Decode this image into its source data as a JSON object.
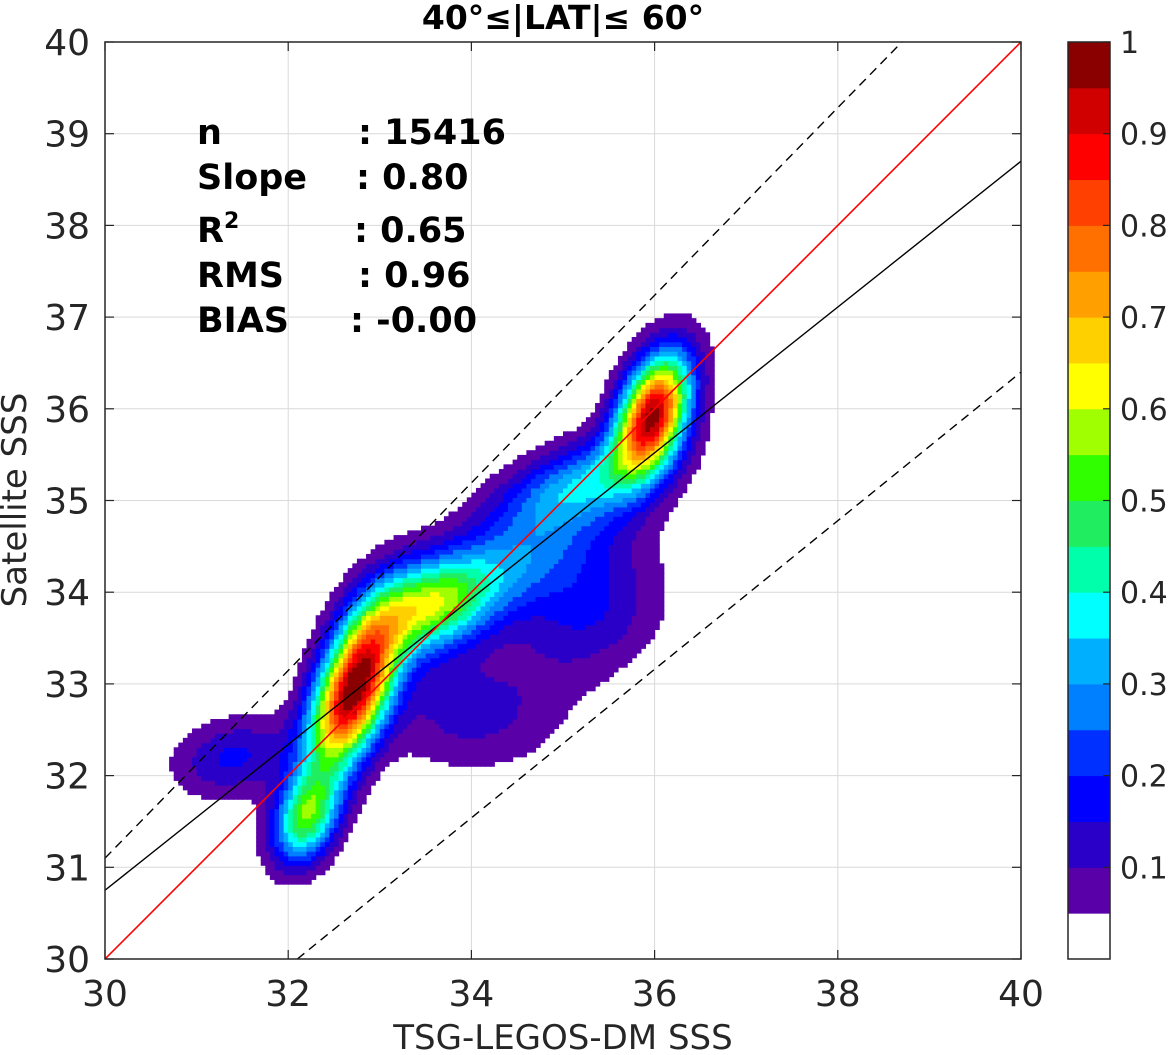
{
  "chart_data": {
    "type": "contour",
    "title": "40°≤|LAT|≤ 60°",
    "xlabel": "TSG-LEGOS-DM SSS",
    "ylabel": "Satellite SSS",
    "xlim": [
      30,
      40
    ],
    "ylim": [
      30,
      40
    ],
    "x_ticks": [
      "30",
      "32",
      "34",
      "36",
      "38",
      "40"
    ],
    "y_ticks": [
      "30",
      "31",
      "32",
      "33",
      "34",
      "35",
      "36",
      "37",
      "38",
      "39",
      "40"
    ],
    "grid": true,
    "stats": [
      {
        "label": "n",
        "value": ": 15416"
      },
      {
        "label": "Slope",
        "value": ": 0.80"
      },
      {
        "label": "R",
        "sup": "2",
        "value": ": 0.65"
      },
      {
        "label": "RMS",
        "value": ": 0.96"
      },
      {
        "label": "BIAS",
        "value": ": -0.00"
      }
    ],
    "lines": {
      "identity": {
        "x": [
          30,
          40
        ],
        "y": [
          30,
          40
        ],
        "color": "#ff0000"
      },
      "regression": {
        "x": [
          30,
          40
        ],
        "y": [
          30.75,
          38.7
        ],
        "color": "#000000"
      },
      "rms_upper": {
        "x": [
          30,
          38.7
        ],
        "y": [
          31.1,
          40
        ],
        "color": "#000000",
        "dash": true
      },
      "rms_lower": {
        "x": [
          32.1,
          40
        ],
        "y": [
          30,
          36.4
        ],
        "color": "#000000",
        "dash": true
      }
    },
    "contour_levels": [
      0.05,
      0.1,
      0.15,
      0.2,
      0.25,
      0.3,
      0.35,
      0.4,
      0.45,
      0.5,
      0.55,
      0.6,
      0.65,
      0.7,
      0.75,
      0.8,
      0.85,
      0.9,
      0.95
    ],
    "peaks": [
      {
        "x": 32.72,
        "y": 32.95,
        "sx": 0.33,
        "sy": 0.6,
        "rho": 0.55,
        "amp": 1.0
      },
      {
        "x": 33.55,
        "y": 33.85,
        "sx": 0.45,
        "sy": 0.35,
        "rho": 0.3,
        "amp": 0.45
      },
      {
        "x": 32.2,
        "y": 31.55,
        "sx": 0.25,
        "sy": 0.35,
        "rho": 0.3,
        "amp": 0.5
      },
      {
        "x": 35.98,
        "y": 35.95,
        "sx": 0.28,
        "sy": 0.45,
        "rho": 0.4,
        "amp": 0.95
      },
      {
        "x": 35.2,
        "y": 35.2,
        "sx": 0.6,
        "sy": 0.35,
        "rho": 0.5,
        "amp": 0.3
      },
      {
        "x": 34.4,
        "y": 34.3,
        "sx": 0.8,
        "sy": 0.5,
        "rho": 0.6,
        "amp": 0.25
      },
      {
        "x": 35.3,
        "y": 33.8,
        "sx": 0.55,
        "sy": 0.5,
        "rho": 0.2,
        "amp": 0.15
      },
      {
        "x": 34.0,
        "y": 32.7,
        "sx": 0.7,
        "sy": 0.45,
        "rho": 0.0,
        "amp": 0.12
      },
      {
        "x": 31.4,
        "y": 32.2,
        "sx": 0.45,
        "sy": 0.3,
        "rho": 0.2,
        "amp": 0.16
      }
    ],
    "colorbar": {
      "min": 0,
      "max": 1,
      "tick_labels": [
        "0.1",
        "0.2",
        "0.3",
        "0.4",
        "0.5",
        "0.6",
        "0.7",
        "0.8",
        "0.9",
        "1"
      ],
      "colors": [
        "#ffffff",
        "#5a00a8",
        "#2a00c8",
        "#0000ff",
        "#0030ff",
        "#0080ff",
        "#00b0ff",
        "#00ffff",
        "#00ffaa",
        "#20ee60",
        "#30ff00",
        "#a0ff00",
        "#ffff00",
        "#ffd000",
        "#ffa000",
        "#ff7000",
        "#ff4000",
        "#ff0000",
        "#d00000",
        "#8a0000"
      ]
    }
  }
}
